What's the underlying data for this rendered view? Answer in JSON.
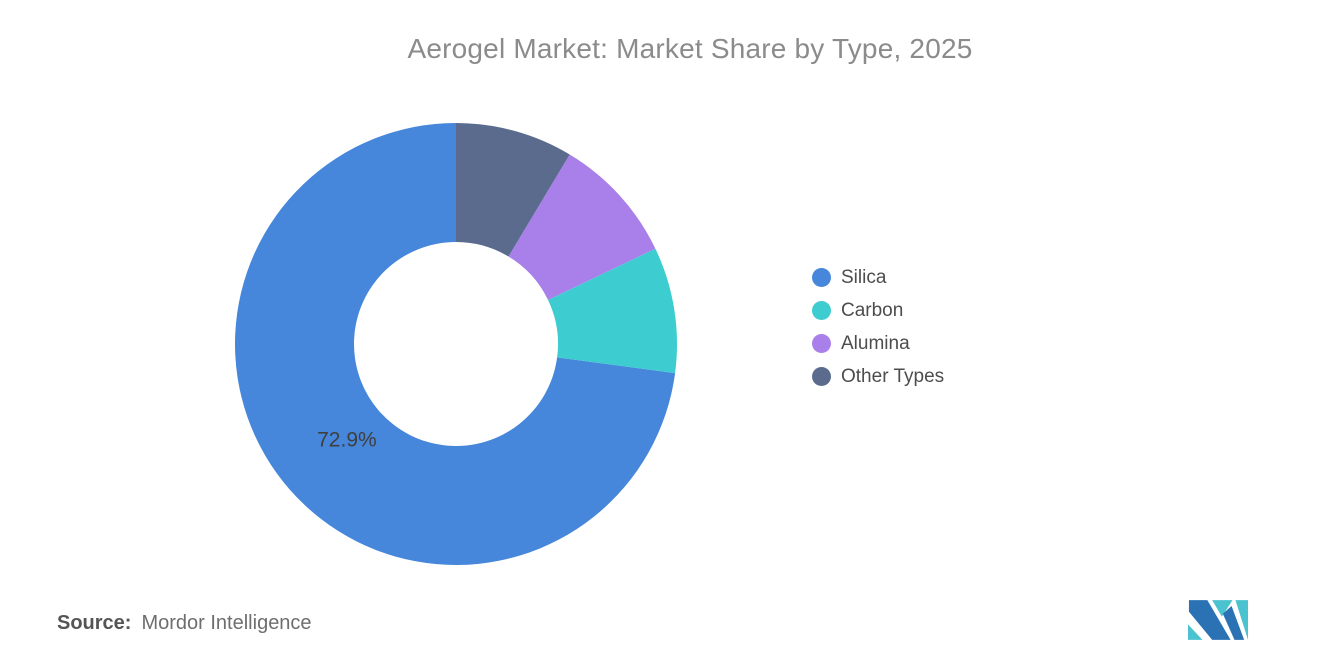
{
  "title": "Aerogel Market: Market Share by Type, 2025",
  "footer": {
    "source_label": "Source:",
    "source_value": "Mordor Intelligence"
  },
  "colors": {
    "background": "#ffffff",
    "title_text": "#8b8b8b",
    "slice_label_text": "#3f3f3f",
    "legend_text": "#4d4d4d",
    "logo_blue": "#2b72b5",
    "logo_teal": "#4bc2cf"
  },
  "chart_data": {
    "type": "pie",
    "variant": "donut",
    "title": "Aerogel Market: Market Share by Type, 2025",
    "unit": "%",
    "legend_position": "right",
    "start_angle_deg": 0,
    "winding": "counterclockwise-from-top",
    "inner_radius_ratio": 0.46,
    "segments": [
      {
        "label": "Silica",
        "value": 72.9,
        "color": "#4687db",
        "data_label": "72.9%"
      },
      {
        "label": "Carbon",
        "value": 9.2,
        "color": "#3dcdd1",
        "data_label": ""
      },
      {
        "label": "Alumina",
        "value": 9.3,
        "color": "#a980e9",
        "data_label": ""
      },
      {
        "label": "Other Types",
        "value": 8.6,
        "color": "#5a6b8e",
        "data_label": ""
      }
    ]
  }
}
